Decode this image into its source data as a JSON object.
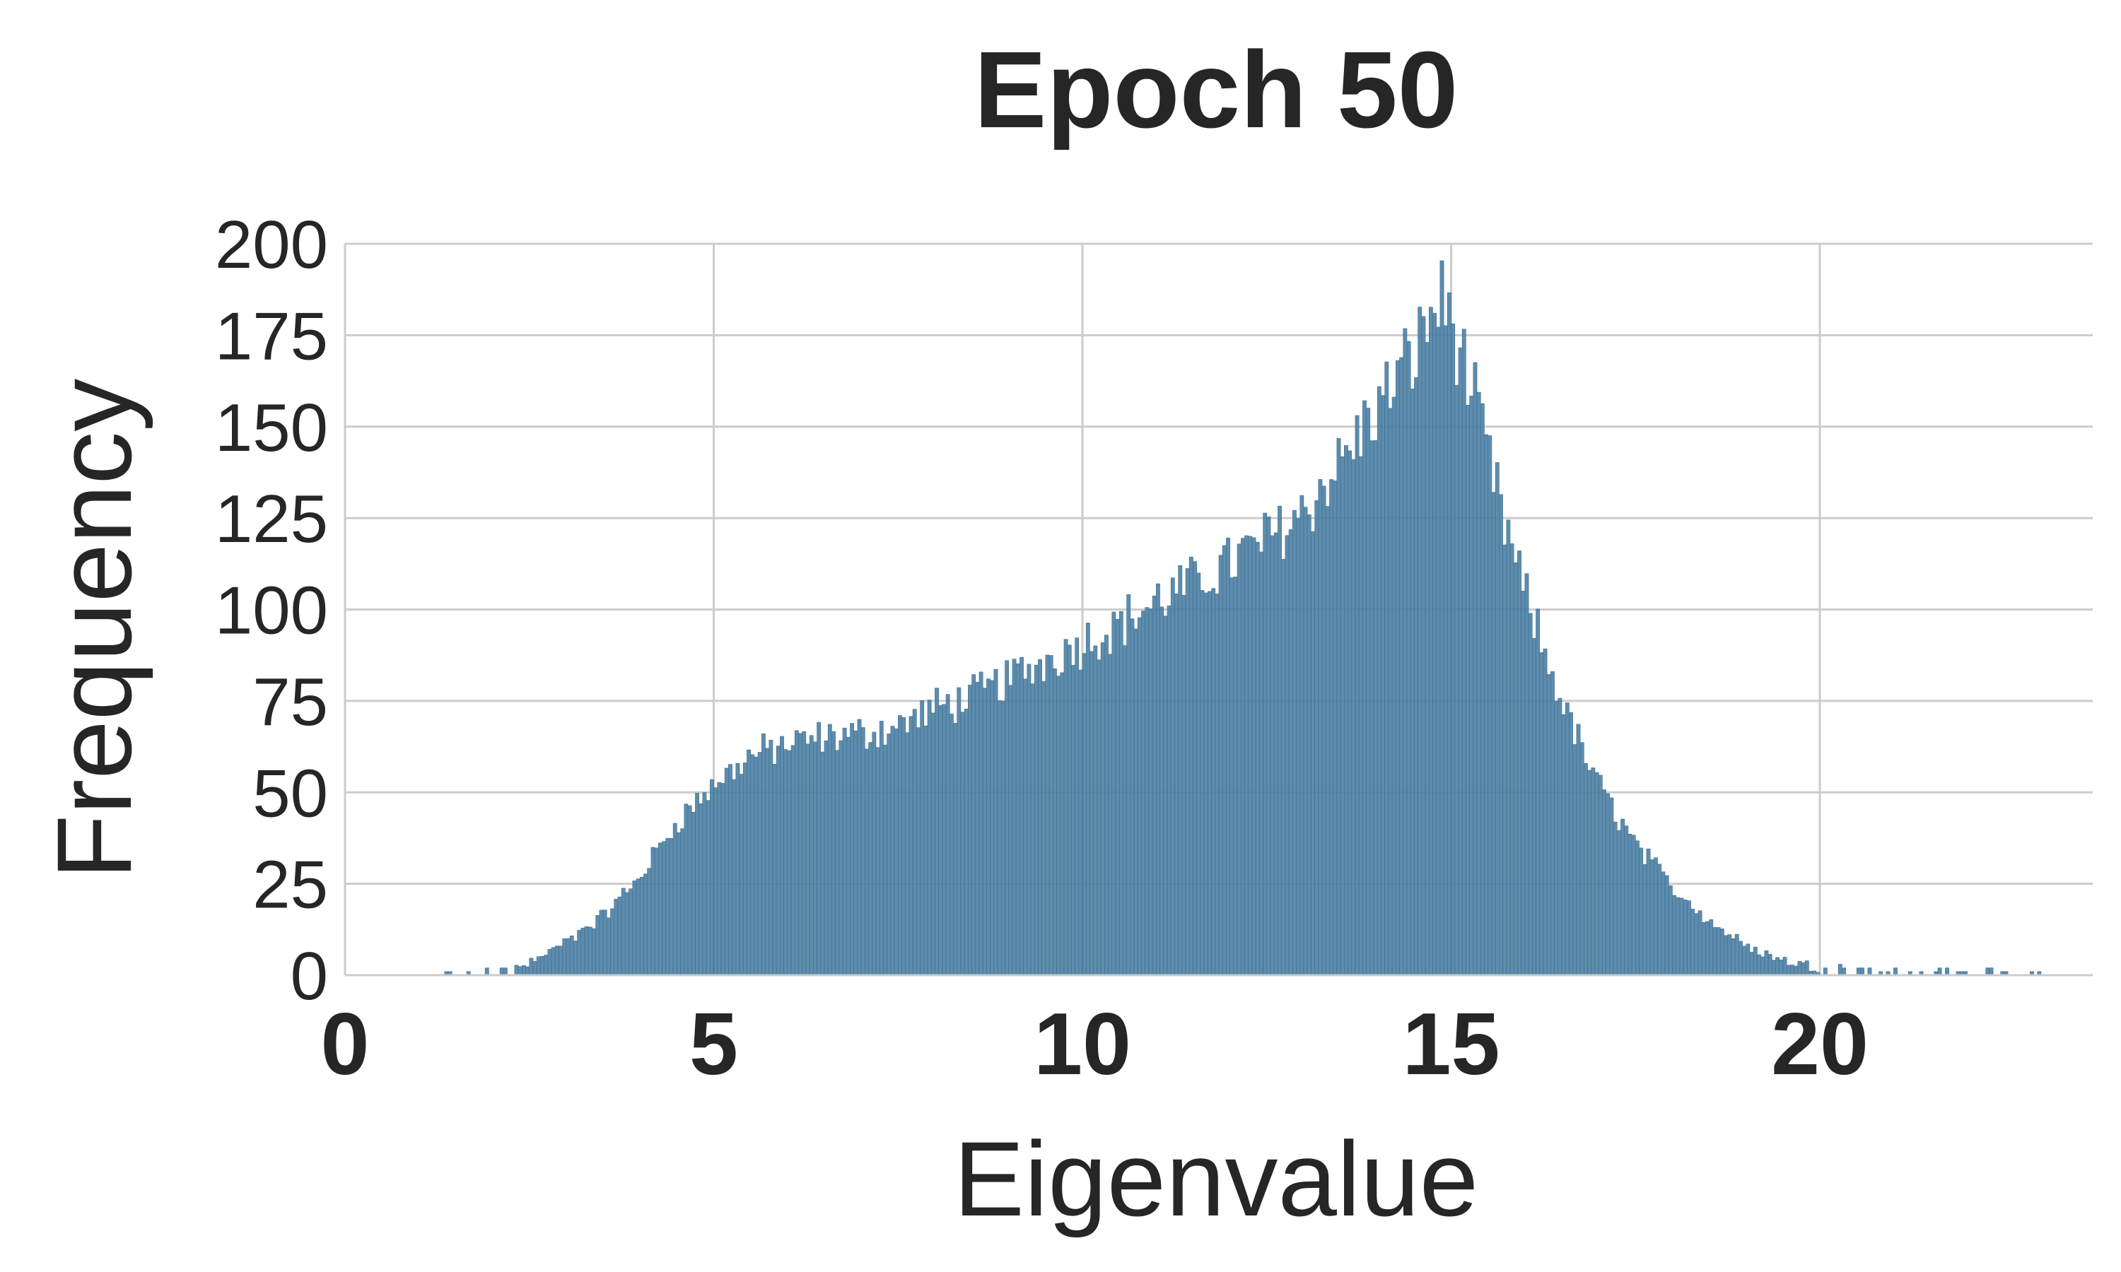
{
  "chart_data": {
    "type": "bar",
    "title": "Epoch 50",
    "xlabel": "Eigenvalue",
    "ylabel": "Frequency",
    "xlim": [
      0,
      23.7
    ],
    "ylim": [
      0,
      200
    ],
    "x_ticks": [
      "0",
      "5",
      "10",
      "15",
      "20"
    ],
    "y_ticks": [
      "0",
      "25",
      "50",
      "75",
      "100",
      "125",
      "150",
      "175",
      "200"
    ],
    "grid": true,
    "bar_color": "#4d7fa3",
    "bin_width": 0.05,
    "envelope": [
      [
        0,
        0
      ],
      [
        1.2,
        0
      ],
      [
        2.0,
        0.5
      ],
      [
        2.5,
        3
      ],
      [
        3.0,
        9
      ],
      [
        3.5,
        16
      ],
      [
        4.0,
        27
      ],
      [
        4.5,
        42
      ],
      [
        5.0,
        52
      ],
      [
        5.5,
        60
      ],
      [
        6.0,
        63
      ],
      [
        6.5,
        65
      ],
      [
        7.0,
        66
      ],
      [
        7.5,
        68
      ],
      [
        8.0,
        73
      ],
      [
        8.5,
        76
      ],
      [
        9.0,
        81
      ],
      [
        9.5,
        86
      ],
      [
        10.0,
        91
      ],
      [
        10.5,
        96
      ],
      [
        11.0,
        102
      ],
      [
        11.5,
        107
      ],
      [
        12.0,
        113
      ],
      [
        12.5,
        119
      ],
      [
        13.0,
        127
      ],
      [
        13.5,
        140
      ],
      [
        14.0,
        155
      ],
      [
        14.5,
        170
      ],
      [
        14.8,
        184
      ],
      [
        14.95,
        183
      ],
      [
        15.1,
        172
      ],
      [
        15.4,
        150
      ],
      [
        15.7,
        125
      ],
      [
        16.0,
        104
      ],
      [
        16.3,
        86
      ],
      [
        16.7,
        65
      ],
      [
        17.0,
        52
      ],
      [
        17.5,
        36
      ],
      [
        18.0,
        24
      ],
      [
        18.5,
        15
      ],
      [
        19.0,
        8
      ],
      [
        19.5,
        4
      ],
      [
        20.0,
        2
      ],
      [
        20.5,
        1
      ],
      [
        21.5,
        0.5
      ],
      [
        23.0,
        0
      ]
    ]
  }
}
